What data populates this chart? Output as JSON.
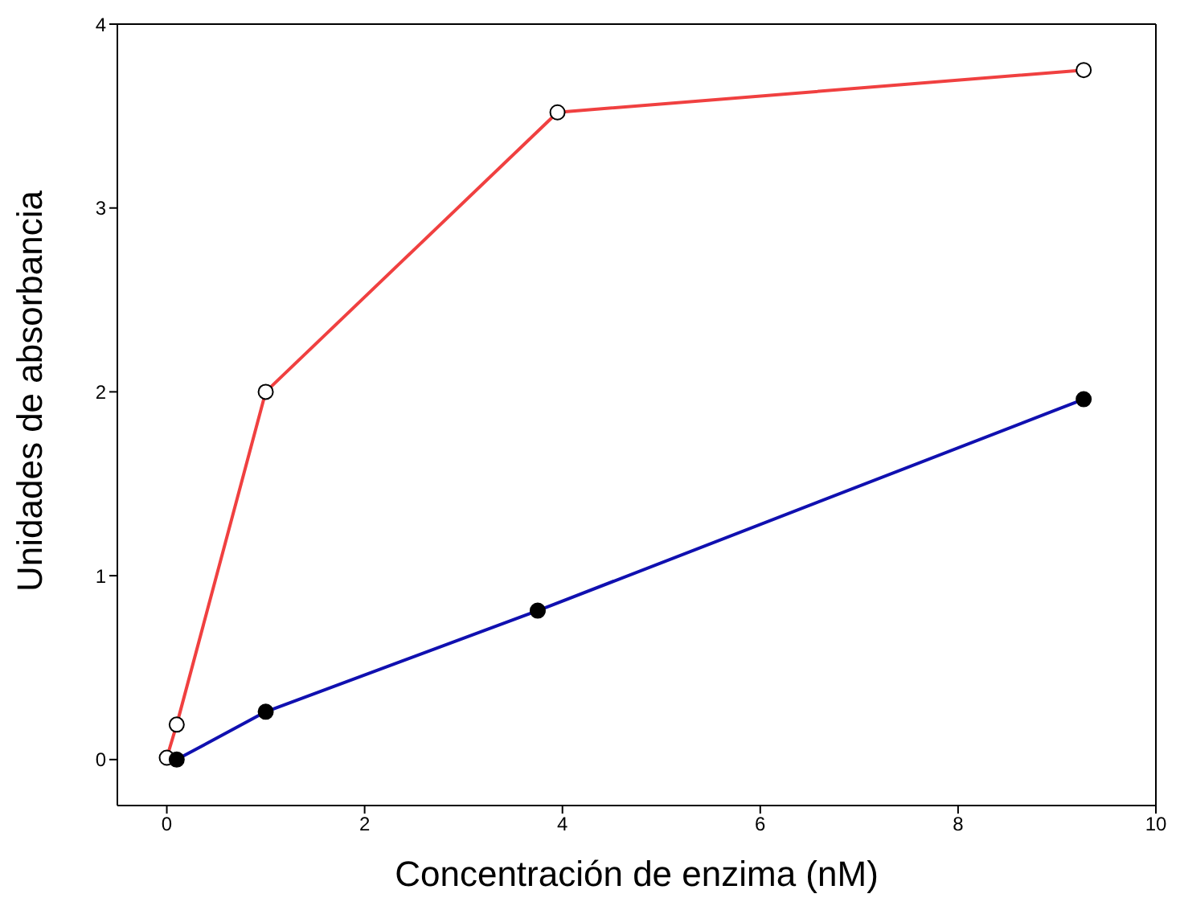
{
  "chart_data": {
    "type": "line",
    "xlabel": "Concentración de enzima (nM)",
    "ylabel": "Unidades de absorbancia",
    "series": [
      {
        "color": "#f04040",
        "x": [
          0,
          0.1,
          1,
          3.95,
          9.27
        ],
        "values": [
          0.01,
          0.19,
          2,
          3.52,
          3.75
        ]
      },
      {
        "color": "#1010b0",
        "x": [
          0.1,
          1,
          3.75,
          9.27
        ],
        "values": [
          0,
          0.26,
          0.81,
          1.96
        ]
      }
    ],
    "xlim": [
      -0.5,
      10
    ],
    "xticks": [
      0,
      2,
      4,
      6,
      8,
      10
    ],
    "ylim": [
      -0.25,
      4
    ],
    "yticks": [
      0,
      1,
      2,
      3,
      4
    ],
    "marker": "circle",
    "line_style": "solid"
  }
}
